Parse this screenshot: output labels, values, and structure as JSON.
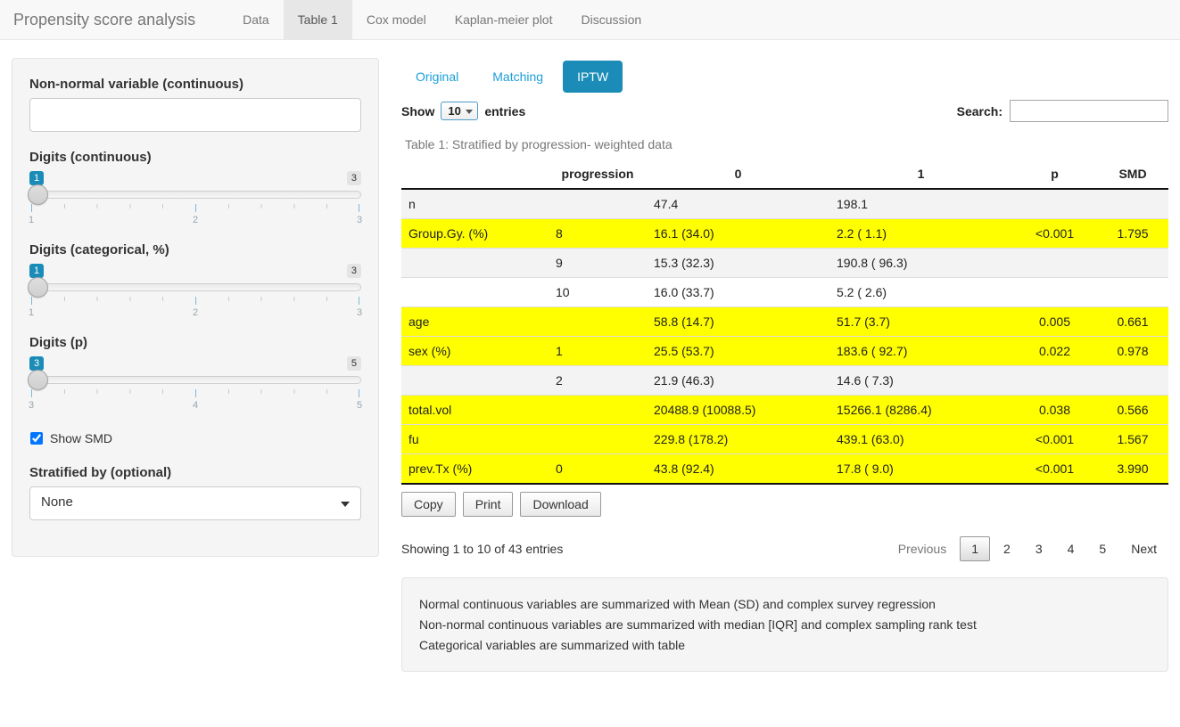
{
  "colors": {
    "accent": "#1a8cb7",
    "link": "#1b9fd8",
    "highlight": "#ffff00",
    "stripe": "#f3f3f3",
    "navbar-bg": "#f8f8f8",
    "well-bg": "#f5f5f5",
    "border-dark": "#111111"
  },
  "navbar": {
    "brand": "Propensity score analysis",
    "tabs": [
      {
        "label": "Data"
      },
      {
        "label": "Table 1"
      },
      {
        "label": "Cox model"
      },
      {
        "label": "Kaplan-meier plot"
      },
      {
        "label": "Discussion"
      }
    ]
  },
  "sidebar": {
    "nonnormal_label": "Non-normal variable (continuous)",
    "nonnormal_value": "",
    "sliders": [
      {
        "label": "Digits (continuous)",
        "value": "1",
        "max": "3",
        "ticks": [
          "1",
          "2",
          "3"
        ]
      },
      {
        "label": "Digits (categorical, %)",
        "value": "1",
        "max": "3",
        "ticks": [
          "1",
          "2",
          "3"
        ]
      },
      {
        "label": "Digits (p)",
        "value": "3",
        "max": "5",
        "ticks": [
          "3",
          "4",
          "5"
        ]
      }
    ],
    "show_smd_label": "Show SMD",
    "stratified_label": "Stratified by (optional)",
    "stratified_value": "None"
  },
  "main": {
    "pills": [
      {
        "label": "Original"
      },
      {
        "label": "Matching"
      },
      {
        "label": "IPTW"
      }
    ],
    "length_control": {
      "prefix": "Show",
      "value": "10",
      "suffix": "entries"
    },
    "search": {
      "label": "Search:",
      "value": ""
    },
    "caption": "Table 1: Stratified by progression- weighted data",
    "table": {
      "columns": [
        "",
        "progression",
        "0",
        "1",
        "p",
        "SMD"
      ],
      "rows": [
        {
          "row_class": "stripe",
          "cells": [
            "n",
            "",
            "47.4",
            "198.1",
            "",
            ""
          ]
        },
        {
          "row_class": "highlight",
          "cells": [
            "Group.Gy. (%)",
            "8",
            "16.1 (34.0)",
            "2.2 ( 1.1)",
            "<0.001",
            "1.795"
          ]
        },
        {
          "row_class": "stripe",
          "cells": [
            "",
            "9",
            "15.3 (32.3)",
            "190.8 ( 96.3)",
            "",
            ""
          ]
        },
        {
          "row_class": "plain",
          "cells": [
            "",
            "10",
            "16.0 (33.7)",
            "5.2 ( 2.6)",
            "",
            ""
          ]
        },
        {
          "row_class": "highlight",
          "cells": [
            "age",
            "",
            "58.8 (14.7)",
            "51.7 (3.7)",
            "0.005",
            "0.661"
          ]
        },
        {
          "row_class": "highlight",
          "cells": [
            "sex (%)",
            "1",
            "25.5 (53.7)",
            "183.6 ( 92.7)",
            "0.022",
            "0.978"
          ]
        },
        {
          "row_class": "stripe",
          "cells": [
            "",
            "2",
            "21.9 (46.3)",
            "14.6 ( 7.3)",
            "",
            ""
          ]
        },
        {
          "row_class": "highlight",
          "cells": [
            "total.vol",
            "",
            "20488.9 (10088.5)",
            "15266.1 (8286.4)",
            "0.038",
            "0.566"
          ]
        },
        {
          "row_class": "highlight",
          "cells": [
            "fu",
            "",
            "229.8 (178.2)",
            "439.1 (63.0)",
            "<0.001",
            "1.567"
          ]
        },
        {
          "row_class": "highlight",
          "cells": [
            "prev.Tx (%)",
            "0",
            "43.8 (92.4)",
            "17.8 ( 9.0)",
            "<0.001",
            "3.990"
          ]
        }
      ]
    },
    "buttons": [
      "Copy",
      "Print",
      "Download"
    ],
    "info": "Showing 1 to 10 of 43 entries",
    "pagination": {
      "previous": "Previous",
      "pages": [
        "1",
        "2",
        "3",
        "4",
        "5"
      ],
      "current": "1",
      "next": "Next"
    },
    "notes": [
      "Normal continuous variables are summarized with Mean (SD) and complex survey regression",
      "Non-normal continuous variables are summarized with median [IQR] and complex sampling rank test",
      "Categorical variables are summarized with table"
    ]
  }
}
